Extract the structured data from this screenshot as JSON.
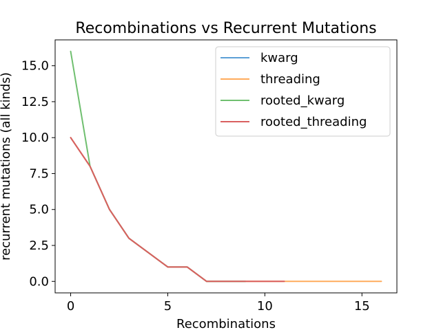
{
  "chart_data": {
    "type": "line",
    "title": "Recombinations vs Recurrent Mutations",
    "xlabel": "Recombinations",
    "ylabel": "recurrent mutations (all kinds)",
    "xlim": [
      -0.8,
      16.8
    ],
    "ylim": [
      -0.8,
      16.8
    ],
    "xticks": [
      0,
      5,
      10,
      15
    ],
    "xtick_labels": [
      "0",
      "5",
      "10",
      "15"
    ],
    "yticks": [
      0,
      2.5,
      5,
      7.5,
      10,
      12.5,
      15
    ],
    "ytick_labels": [
      "0.0",
      "2.5",
      "5.0",
      "7.5",
      "10.0",
      "12.5",
      "15.0"
    ],
    "grid": false,
    "legend_position": "top-right",
    "series": [
      {
        "name": "kwarg",
        "color": "#5b9fd6",
        "x": [
          0,
          1,
          2,
          3,
          4,
          5,
          6,
          7,
          8,
          9
        ],
        "y": [
          10,
          8,
          5,
          3,
          2,
          1,
          1,
          0,
          0,
          0
        ]
      },
      {
        "name": "threading",
        "color": "#ffab5b",
        "x": [
          0,
          1,
          2,
          3,
          4,
          5,
          6,
          7,
          8,
          9,
          10,
          11,
          12,
          13,
          14,
          15,
          16
        ],
        "y": [
          10,
          8,
          5,
          3,
          2,
          1,
          1,
          0,
          0,
          0,
          0,
          0,
          0,
          0,
          0,
          0,
          0
        ]
      },
      {
        "name": "rooted_kwarg",
        "color": "#6fbf6f",
        "x": [
          0,
          1,
          2,
          3,
          4,
          5,
          6,
          7,
          8,
          9
        ],
        "y": [
          16,
          8,
          5,
          3,
          2,
          1,
          1,
          0,
          0,
          0
        ]
      },
      {
        "name": "rooted_threading",
        "color": "#d95f5f",
        "x": [
          0,
          1,
          2,
          3,
          4,
          5,
          6,
          7,
          8,
          9,
          10,
          11
        ],
        "y": [
          10,
          8,
          5,
          3,
          2,
          1,
          1,
          0,
          0,
          0,
          0,
          0
        ]
      }
    ]
  }
}
